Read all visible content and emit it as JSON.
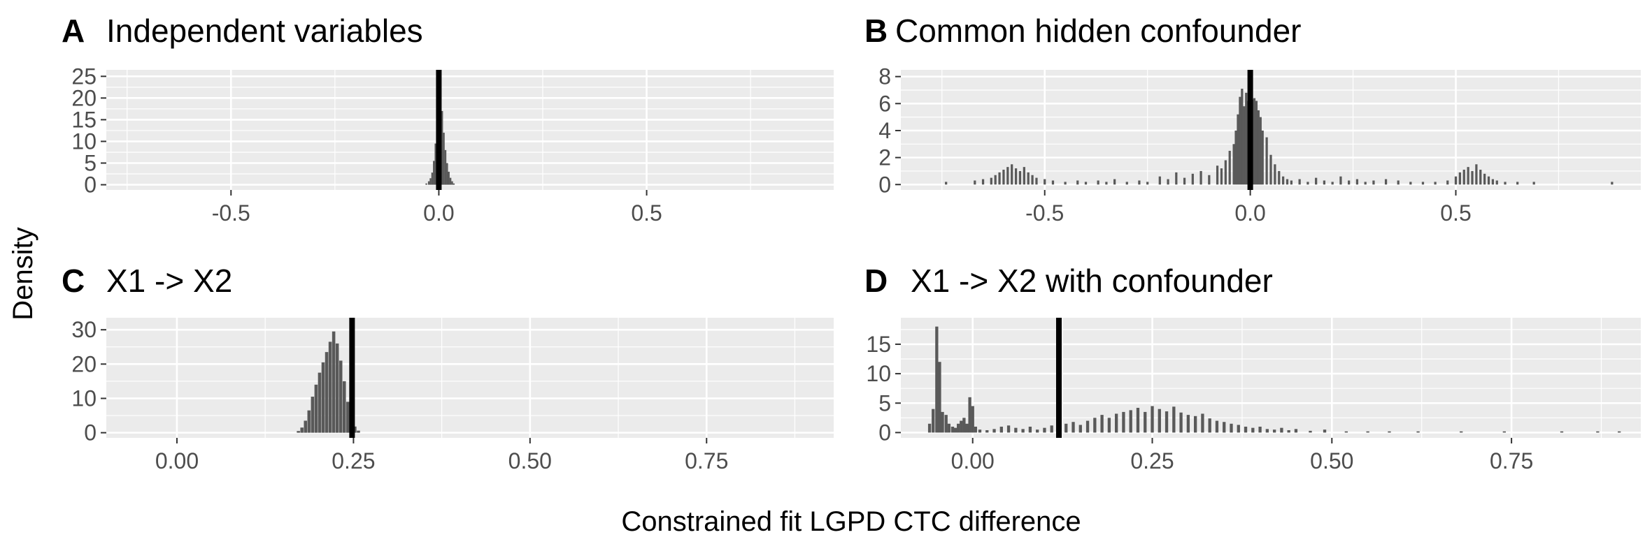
{
  "figure": {
    "ylabel": "Density",
    "xlabel": "Constrained fit LGPD CTC difference"
  },
  "colors": {
    "panel_bg": "#EBEBEB",
    "grid": "#FFFFFF",
    "bar": "#595959",
    "vline": "#000000",
    "text": "#1A1A1A",
    "tick_text": "#4D4D4D"
  },
  "chart_data": [
    {
      "tag": "A",
      "title": "Independent variables",
      "type": "bar",
      "xlim": [
        -0.8,
        0.95
      ],
      "ylim": [
        -1.2,
        26.5
      ],
      "xticks": [
        -0.5,
        0,
        0.5
      ],
      "xtick_labels": [
        "-0.5",
        "0.0",
        "0.5"
      ],
      "yticks": [
        0,
        5,
        10,
        15,
        20,
        25
      ],
      "ytick_labels": [
        "0",
        "5",
        "10",
        "15",
        "20",
        "25"
      ],
      "vline": 0.0,
      "bin_width": 0.0042,
      "bins": [
        [
          -0.03,
          0.3
        ],
        [
          -0.024,
          0.8
        ],
        [
          -0.02,
          1.5
        ],
        [
          -0.016,
          2.8
        ],
        [
          -0.012,
          5.5
        ],
        [
          -0.008,
          9.5
        ],
        [
          -0.004,
          14.5
        ],
        [
          0.0,
          21.0
        ],
        [
          0.004,
          21.0
        ],
        [
          0.008,
          17.0
        ],
        [
          0.012,
          12.0
        ],
        [
          0.016,
          8.0
        ],
        [
          0.02,
          5.0
        ],
        [
          0.024,
          3.0
        ],
        [
          0.028,
          1.6
        ],
        [
          0.032,
          0.8
        ],
        [
          0.036,
          0.3
        ]
      ]
    },
    {
      "tag": "B",
      "title": "Common hidden confounder",
      "type": "bar",
      "xlim": [
        -0.85,
        0.95
      ],
      "ylim": [
        -0.4,
        8.5
      ],
      "xticks": [
        -0.5,
        0,
        0.5
      ],
      "xtick_labels": [
        "-0.5",
        "0.0",
        "0.5"
      ],
      "yticks": [
        0,
        2,
        4,
        6,
        8
      ],
      "ytick_labels": [
        "0",
        "2",
        "4",
        "6",
        "8"
      ],
      "vline": 0.0,
      "bin_width": 0.0055,
      "bins": [
        [
          -0.74,
          0.2
        ],
        [
          -0.67,
          0.3
        ],
        [
          -0.65,
          0.4
        ],
        [
          -0.63,
          0.5
        ],
        [
          -0.62,
          0.7
        ],
        [
          -0.61,
          0.9
        ],
        [
          -0.6,
          1.1
        ],
        [
          -0.59,
          1.3
        ],
        [
          -0.58,
          1.5
        ],
        [
          -0.57,
          1.2
        ],
        [
          -0.56,
          1.0
        ],
        [
          -0.55,
          1.3
        ],
        [
          -0.54,
          0.9
        ],
        [
          -0.53,
          0.7
        ],
        [
          -0.52,
          0.5
        ],
        [
          -0.5,
          0.4
        ],
        [
          -0.48,
          0.3
        ],
        [
          -0.45,
          0.2
        ],
        [
          -0.42,
          0.3
        ],
        [
          -0.4,
          0.2
        ],
        [
          -0.37,
          0.3
        ],
        [
          -0.35,
          0.2
        ],
        [
          -0.33,
          0.4
        ],
        [
          -0.3,
          0.2
        ],
        [
          -0.27,
          0.3
        ],
        [
          -0.25,
          0.2
        ],
        [
          -0.22,
          0.6
        ],
        [
          -0.2,
          0.4
        ],
        [
          -0.18,
          0.9
        ],
        [
          -0.16,
          0.5
        ],
        [
          -0.14,
          0.8
        ],
        [
          -0.12,
          1.0
        ],
        [
          -0.1,
          0.7
        ],
        [
          -0.08,
          1.4
        ],
        [
          -0.07,
          1.2
        ],
        [
          -0.06,
          1.8
        ],
        [
          -0.05,
          2.5
        ],
        [
          -0.04,
          3.0
        ],
        [
          -0.035,
          4.0
        ],
        [
          -0.03,
          5.2
        ],
        [
          -0.025,
          6.5
        ],
        [
          -0.02,
          7.1
        ],
        [
          -0.015,
          5.8
        ],
        [
          -0.01,
          6.8
        ],
        [
          -0.005,
          6.2
        ],
        [
          0.0,
          7.6
        ],
        [
          0.005,
          6.3
        ],
        [
          0.01,
          6.4
        ],
        [
          0.015,
          6.2
        ],
        [
          0.02,
          5.5
        ],
        [
          0.025,
          5.0
        ],
        [
          0.03,
          4.0
        ],
        [
          0.04,
          3.5
        ],
        [
          0.05,
          2.2
        ],
        [
          0.06,
          1.5
        ],
        [
          0.07,
          1.0
        ],
        [
          0.08,
          0.6
        ],
        [
          0.09,
          0.4
        ],
        [
          0.1,
          0.3
        ],
        [
          0.12,
          0.4
        ],
        [
          0.14,
          0.2
        ],
        [
          0.16,
          0.5
        ],
        [
          0.18,
          0.3
        ],
        [
          0.2,
          0.2
        ],
        [
          0.22,
          0.6
        ],
        [
          0.24,
          0.3
        ],
        [
          0.26,
          0.4
        ],
        [
          0.28,
          0.2
        ],
        [
          0.3,
          0.3
        ],
        [
          0.33,
          0.4
        ],
        [
          0.36,
          0.3
        ],
        [
          0.39,
          0.2
        ],
        [
          0.42,
          0.2
        ],
        [
          0.45,
          0.2
        ],
        [
          0.48,
          0.3
        ],
        [
          0.5,
          0.6
        ],
        [
          0.51,
          0.9
        ],
        [
          0.52,
          1.1
        ],
        [
          0.53,
          1.3
        ],
        [
          0.54,
          1.0
        ],
        [
          0.55,
          1.5
        ],
        [
          0.56,
          1.1
        ],
        [
          0.57,
          0.8
        ],
        [
          0.58,
          0.6
        ],
        [
          0.59,
          0.4
        ],
        [
          0.6,
          0.3
        ],
        [
          0.62,
          0.2
        ],
        [
          0.65,
          0.2
        ],
        [
          0.69,
          0.2
        ],
        [
          0.88,
          0.2
        ]
      ]
    },
    {
      "tag": "C",
      "title": "X1 -> X2",
      "type": "bar",
      "xlim": [
        -0.1,
        0.93
      ],
      "ylim": [
        -1.5,
        33.5
      ],
      "xticks": [
        0,
        0.25,
        0.5,
        0.75
      ],
      "xtick_labels": [
        "0.00",
        "0.25",
        "0.50",
        "0.75"
      ],
      "yticks": [
        0,
        10,
        20,
        30
      ],
      "ytick_labels": [
        "0",
        "10",
        "20",
        "30"
      ],
      "vline": 0.248,
      "bin_width": 0.0045,
      "bins": [
        [
          0.172,
          0.5
        ],
        [
          0.177,
          1.5
        ],
        [
          0.182,
          3.5
        ],
        [
          0.187,
          6.5
        ],
        [
          0.192,
          10.5
        ],
        [
          0.197,
          14.0
        ],
        [
          0.202,
          17.5
        ],
        [
          0.207,
          20.5
        ],
        [
          0.212,
          23.5
        ],
        [
          0.217,
          26.5
        ],
        [
          0.222,
          29.5
        ],
        [
          0.227,
          26.0
        ],
        [
          0.232,
          21.0
        ],
        [
          0.237,
          15.0
        ],
        [
          0.242,
          9.0
        ],
        [
          0.247,
          4.5
        ],
        [
          0.252,
          1.8
        ],
        [
          0.257,
          0.6
        ]
      ]
    },
    {
      "tag": "D",
      "title": "X1 -> X2 with confounder",
      "type": "bar",
      "xlim": [
        -0.1,
        0.93
      ],
      "ylim": [
        -0.9,
        19.5
      ],
      "xticks": [
        0,
        0.25,
        0.5,
        0.75
      ],
      "xtick_labels": [
        "0.00",
        "0.25",
        "0.50",
        "0.75"
      ],
      "yticks": [
        0,
        5,
        10,
        15
      ],
      "ytick_labels": [
        "0",
        "5",
        "10",
        "15"
      ],
      "vline": 0.12,
      "bin_width": 0.0042,
      "bins": [
        [
          -0.06,
          1.5
        ],
        [
          -0.055,
          4.0
        ],
        [
          -0.05,
          18.0
        ],
        [
          -0.046,
          12.0
        ],
        [
          -0.042,
          3.5
        ],
        [
          -0.037,
          3.0
        ],
        [
          -0.033,
          1.5
        ],
        [
          -0.028,
          1.0
        ],
        [
          -0.024,
          0.8
        ],
        [
          -0.02,
          1.5
        ],
        [
          -0.016,
          2.0
        ],
        [
          -0.012,
          2.5
        ],
        [
          -0.008,
          1.5
        ],
        [
          -0.004,
          6.0
        ],
        [
          0.0,
          4.5
        ],
        [
          0.004,
          1.0
        ],
        [
          0.01,
          0.5
        ],
        [
          0.02,
          0.4
        ],
        [
          0.03,
          0.6
        ],
        [
          0.04,
          1.0
        ],
        [
          0.05,
          1.2
        ],
        [
          0.06,
          0.8
        ],
        [
          0.07,
          0.6
        ],
        [
          0.08,
          1.0
        ],
        [
          0.09,
          0.5
        ],
        [
          0.1,
          0.8
        ],
        [
          0.11,
          1.2
        ],
        [
          0.12,
          1.0
        ],
        [
          0.13,
          1.5
        ],
        [
          0.14,
          1.8
        ],
        [
          0.15,
          1.3
        ],
        [
          0.16,
          2.0
        ],
        [
          0.17,
          2.5
        ],
        [
          0.18,
          3.0
        ],
        [
          0.19,
          2.5
        ],
        [
          0.2,
          3.2
        ],
        [
          0.21,
          3.5
        ],
        [
          0.22,
          3.8
        ],
        [
          0.23,
          4.2
        ],
        [
          0.24,
          3.5
        ],
        [
          0.25,
          4.5
        ],
        [
          0.26,
          4.0
        ],
        [
          0.27,
          3.6
        ],
        [
          0.28,
          4.4
        ],
        [
          0.29,
          3.4
        ],
        [
          0.3,
          3.0
        ],
        [
          0.31,
          2.8
        ],
        [
          0.32,
          3.2
        ],
        [
          0.33,
          2.4
        ],
        [
          0.34,
          2.0
        ],
        [
          0.35,
          1.8
        ],
        [
          0.36,
          1.5
        ],
        [
          0.37,
          1.3
        ],
        [
          0.38,
          1.0
        ],
        [
          0.39,
          0.8
        ],
        [
          0.4,
          1.0
        ],
        [
          0.41,
          0.6
        ],
        [
          0.42,
          0.5
        ],
        [
          0.43,
          0.8
        ],
        [
          0.44,
          0.4
        ],
        [
          0.45,
          0.6
        ],
        [
          0.47,
          0.3
        ],
        [
          0.49,
          0.5
        ],
        [
          0.52,
          0.2
        ],
        [
          0.55,
          0.2
        ],
        [
          0.58,
          0.2
        ],
        [
          0.62,
          0.2
        ],
        [
          0.68,
          0.2
        ],
        [
          0.74,
          0.2
        ],
        [
          0.82,
          0.2
        ],
        [
          0.87,
          0.2
        ],
        [
          0.9,
          0.2
        ]
      ]
    }
  ]
}
